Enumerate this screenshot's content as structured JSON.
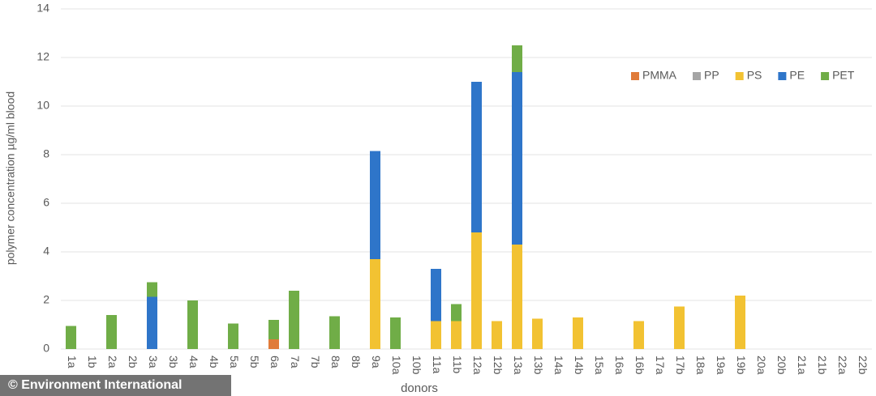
{
  "chart_data": {
    "type": "stacked-bar",
    "ylabel": "polymer concentration µg/ml blood",
    "xlabel": "donors",
    "watermark": "© Environment International",
    "categories": [
      "1a",
      "1b",
      "2a",
      "2b",
      "3a",
      "3b",
      "4a",
      "4b",
      "5a",
      "5b",
      "6a",
      "7a",
      "7b",
      "8a",
      "8b",
      "9a",
      "10a",
      "10b",
      "11a",
      "11b",
      "12a",
      "12b",
      "13a",
      "13b",
      "14a",
      "14b",
      "15a",
      "16a",
      "16b",
      "17a",
      "17b",
      "18a",
      "19a",
      "19b",
      "20a",
      "20b",
      "21a",
      "21b",
      "22a",
      "22b"
    ],
    "series": [
      {
        "name": "PMMA",
        "color": "#e07b39",
        "values": [
          null,
          null,
          null,
          null,
          null,
          null,
          null,
          null,
          null,
          null,
          0.4,
          null,
          null,
          null,
          null,
          null,
          null,
          null,
          null,
          null,
          null,
          null,
          null,
          null,
          null,
          null,
          null,
          null,
          null,
          null,
          null,
          null,
          null,
          null,
          null,
          null,
          null,
          null,
          null,
          null
        ]
      },
      {
        "name": "PP",
        "color": "#a5a5a5",
        "values": [
          null,
          null,
          null,
          null,
          null,
          null,
          null,
          null,
          null,
          null,
          null,
          null,
          null,
          null,
          null,
          null,
          null,
          null,
          null,
          null,
          null,
          null,
          null,
          null,
          null,
          null,
          null,
          null,
          null,
          null,
          null,
          null,
          null,
          null,
          null,
          null,
          null,
          null,
          null,
          null
        ]
      },
      {
        "name": "PS",
        "color": "#f2c232",
        "values": [
          null,
          null,
          null,
          null,
          null,
          null,
          null,
          null,
          null,
          null,
          null,
          null,
          null,
          null,
          null,
          3.7,
          null,
          null,
          1.15,
          1.15,
          4.8,
          1.15,
          4.3,
          1.25,
          null,
          1.3,
          null,
          null,
          1.15,
          null,
          1.75,
          null,
          null,
          2.2,
          null,
          null,
          null,
          null,
          null,
          null
        ]
      },
      {
        "name": "PE",
        "color": "#2e75c9",
        "values": [
          null,
          null,
          null,
          null,
          2.15,
          null,
          null,
          null,
          null,
          null,
          null,
          null,
          null,
          null,
          null,
          4.45,
          null,
          null,
          2.15,
          null,
          6.2,
          null,
          7.1,
          null,
          null,
          null,
          null,
          null,
          null,
          null,
          null,
          null,
          null,
          null,
          null,
          null,
          null,
          null,
          null,
          null
        ]
      },
      {
        "name": "PET",
        "color": "#70ad47",
        "values": [
          0.95,
          null,
          1.4,
          null,
          0.6,
          null,
          2.0,
          null,
          1.05,
          null,
          0.8,
          2.4,
          null,
          1.35,
          null,
          null,
          1.3,
          null,
          null,
          0.7,
          null,
          null,
          1.1,
          null,
          null,
          null,
          null,
          null,
          null,
          null,
          null,
          null,
          null,
          null,
          null,
          null,
          null,
          null,
          null,
          null
        ]
      }
    ],
    "ylim": [
      0,
      14
    ],
    "yticks": [
      0,
      2,
      4,
      6,
      8,
      10,
      12,
      14
    ],
    "grid": true,
    "legend": "top-right"
  }
}
